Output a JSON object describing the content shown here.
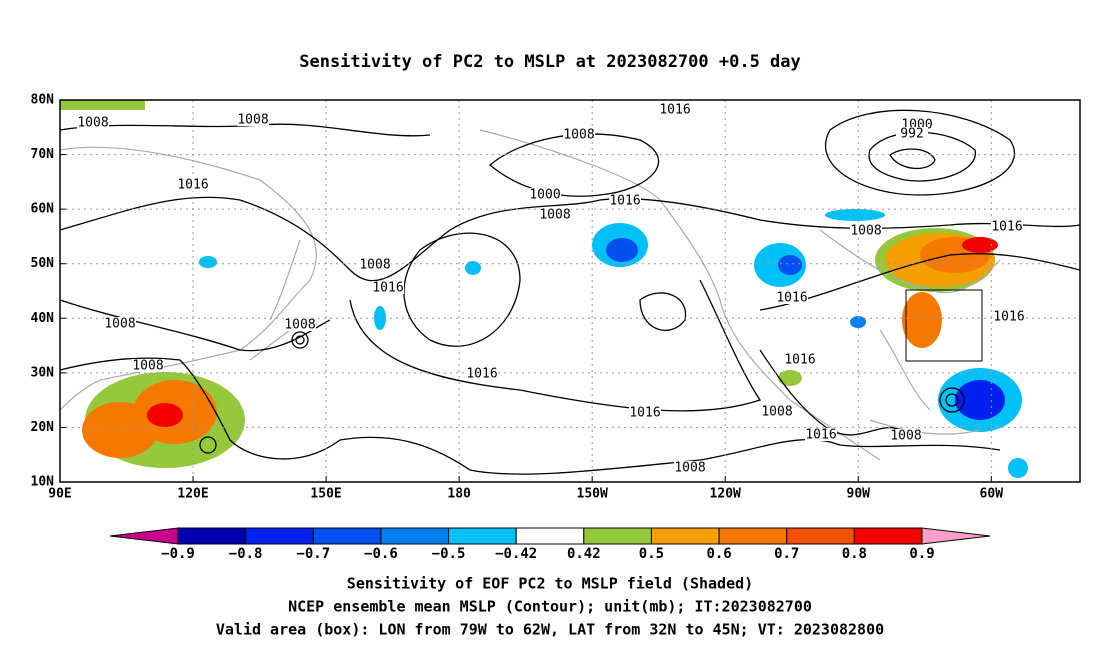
{
  "title": "Sensitivity of PC2 to MSLP at 2023082700 +0.5 day",
  "map": {
    "lon_range": [
      90,
      320
    ],
    "lat_range": [
      10,
      80
    ],
    "lon_ticks": [
      {
        "value": 90,
        "label": "90E"
      },
      {
        "value": 120,
        "label": "120E"
      },
      {
        "value": 150,
        "label": "150E"
      },
      {
        "value": 180,
        "label": "180"
      },
      {
        "value": 210,
        "label": "150W"
      },
      {
        "value": 240,
        "label": "120W"
      },
      {
        "value": 270,
        "label": "90W"
      },
      {
        "value": 300,
        "label": "60W"
      }
    ],
    "lat_ticks": [
      {
        "value": 10,
        "label": "10N"
      },
      {
        "value": 20,
        "label": "20N"
      },
      {
        "value": 30,
        "label": "30N"
      },
      {
        "value": 40,
        "label": "40N"
      },
      {
        "value": 50,
        "label": "50N"
      },
      {
        "value": 60,
        "label": "60N"
      },
      {
        "value": 70,
        "label": "70N"
      },
      {
        "value": 80,
        "label": "80N"
      }
    ],
    "contour_labels": [
      "1008",
      "1008",
      "1016",
      "1008",
      "1016",
      "1000",
      "992",
      "1000",
      "1008",
      "1016",
      "1008",
      "1016",
      "1008",
      "1016",
      "1016",
      "1016",
      "1008",
      "1008",
      "1008",
      "1016",
      "1016",
      "1016",
      "1008",
      "1016",
      "1008",
      "1008"
    ]
  },
  "colorbar": {
    "labels": [
      "−0.9",
      "−0.8",
      "−0.7",
      "−0.6",
      "−0.5",
      "−0.42",
      "0.42",
      "0.5",
      "0.6",
      "0.7",
      "0.8",
      "0.9"
    ],
    "colors": [
      "#c8008c",
      "#0000b0",
      "#0020f0",
      "#0050f0",
      "#0080f0",
      "#00c0f8",
      "#ffffff",
      "#96c83c",
      "#f5a000",
      "#f57800",
      "#f55000",
      "#f50000",
      "#f5a0c8"
    ]
  },
  "caption": [
    "Sensitivity of EOF PC2 to MSLP field (Shaded)",
    "NCEP ensemble mean MSLP (Contour); unit(mb); IT:2023082700",
    "Valid area (box): LON from 79W to 62W, LAT from 32N to 45N; VT: 2023082800"
  ]
}
